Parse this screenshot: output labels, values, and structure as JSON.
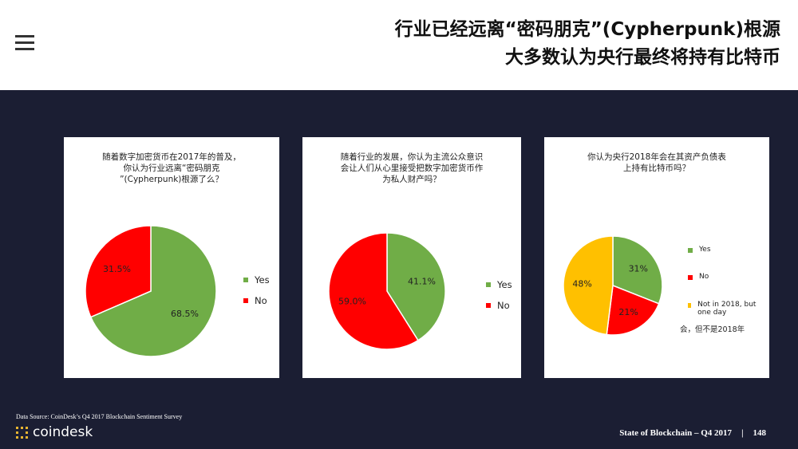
{
  "header": {
    "title_line1": "行业已经远离“密码朋克”(Cypherpunk)根源",
    "title_line2": "大多数认为央行最终将持有比特币",
    "menu_icon": "hamburger-menu-icon"
  },
  "colors": {
    "yes": "#70ad47",
    "no": "#ff0000",
    "later": "#ffc000",
    "background": "#1b1e33"
  },
  "chart_data": [
    {
      "type": "pie",
      "title": "随着数字加密货币在2017年的普及，你认为行业远离“密码朋克”(Cypherpunk)根源了么？",
      "title_lines": [
        "随着数字加密货币在2017年的普及，",
        "你认为行业远离“密码朋克",
        "”(Cypherpunk)根源了么？"
      ],
      "slices": [
        {
          "label": "Yes",
          "value": 68.5,
          "display": "68.5%",
          "color": "#70ad47"
        },
        {
          "label": "No",
          "value": 31.5,
          "display": "31.5%",
          "color": "#ff0000"
        }
      ],
      "legend": "right"
    },
    {
      "type": "pie",
      "title": "随着行业的发展，你认为主流公众意识会让人们从心里接受把数字加密货币作为私人财产吗？",
      "title_lines": [
        "随着行业的发展，你认为主流公众意识",
        "会让人们从心里接受把数字加密货币作",
        "为私人财产吗？"
      ],
      "slices": [
        {
          "label": "Yes",
          "value": 41.1,
          "display": "41.1%",
          "color": "#70ad47"
        },
        {
          "label": "No",
          "value": 59.0,
          "display": "59.0%",
          "color": "#ff0000"
        }
      ],
      "legend": "right"
    },
    {
      "type": "pie",
      "title": "你认为央行2018年会在其资产负债表上持有比特币吗？",
      "title_lines": [
        "你认为央行2018年会在其资产负债表",
        "上持有比特币吗？"
      ],
      "slices": [
        {
          "label": "Yes",
          "value": 31,
          "display": "31%",
          "color": "#70ad47"
        },
        {
          "label": "No",
          "value": 21,
          "display": "21%",
          "color": "#ff0000"
        },
        {
          "label": "Not in 2018, but one day",
          "value": 48,
          "display": "48%",
          "color": "#ffc000"
        }
      ],
      "annotation": "会，但不是2018年",
      "legend": "right"
    }
  ],
  "footer": {
    "source": "Data Source: CoinDesk’s Q4 2017 Blockchain Sentiment Survey",
    "logo": "coindesk",
    "report": "State of Blockchain – Q4 2017",
    "sep": "|",
    "page": "148"
  }
}
